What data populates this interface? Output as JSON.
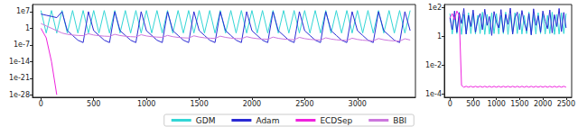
{
  "chart_data": [
    {
      "type": "line",
      "log": "y",
      "grid": false,
      "legend": "bottom",
      "xlim": [
        -80,
        3550
      ],
      "xticks": [
        0,
        500,
        1000,
        1500,
        2000,
        2500,
        3000
      ],
      "ylim": [
        1e-29,
        10000000000.0
      ],
      "yticks": [
        {
          "value": 1e-28,
          "label": "1e-28"
        },
        {
          "value": 1e-21,
          "label": "1e-21"
        },
        {
          "value": 1e-14,
          "label": "1e-14"
        },
        {
          "value": 1e-07,
          "label": "1e-7"
        },
        1,
        {
          "value": 10000000.0,
          "label": "1e7"
        }
      ],
      "x": [
        0,
        50,
        100,
        150,
        200,
        250,
        300,
        350,
        400,
        450,
        500,
        550,
        600,
        650,
        700,
        750,
        800,
        850,
        900,
        950,
        1000,
        1050,
        1100,
        1150,
        1200,
        1250,
        1300,
        1350,
        1400,
        1450,
        1500,
        1550,
        1600,
        1650,
        1700,
        1750,
        1800,
        1850,
        1900,
        1950,
        2000,
        2050,
        2100,
        2150,
        2200,
        2250,
        2300,
        2350,
        2400,
        2450,
        2500,
        2550,
        2600,
        2650,
        2700,
        2750,
        2800,
        2850,
        2900,
        2950,
        3000,
        3050,
        3100,
        3150,
        3200,
        3250,
        3300,
        3350,
        3400,
        3450,
        3500
      ],
      "series": [
        {
          "name": "GDM",
          "color": "#33d6d6",
          "values": [
            30000000.0,
            0.01,
            30000000.0,
            0.01,
            30000000.0,
            0.01,
            30000000.0,
            0.01,
            30000000.0,
            0.01,
            30000000.0,
            0.01,
            30000000.0,
            0.01,
            30000000.0,
            0.01,
            30000000.0,
            0.01,
            30000000.0,
            0.01,
            30000000.0,
            0.01,
            30000000.0,
            0.01,
            30000000.0,
            0.01,
            30000000.0,
            0.01,
            30000000.0,
            0.01,
            30000000.0,
            0.01,
            30000000.0,
            0.01,
            30000000.0,
            0.01,
            30000000.0,
            0.01,
            30000000.0,
            0.01,
            30000000.0,
            0.01,
            30000000.0,
            0.01,
            30000000.0,
            0.01,
            30000000.0,
            0.01,
            30000000.0,
            0.01,
            30000000.0,
            0.01,
            30000000.0,
            0.01,
            30000000.0,
            0.01,
            30000000.0,
            0.01,
            30000000.0,
            0.01,
            30000000.0,
            0.01,
            30000000.0,
            0.01,
            30000000.0,
            0.01,
            30000000.0,
            0.01,
            30000000.0,
            0.01,
            30000000.0
          ]
        },
        {
          "name": "Adam",
          "color": "#2a2ad4",
          "values": [
            1000000.0,
            300000.0,
            100000.0,
            30000.0,
            10000000.0,
            0.1,
            0.001,
            1e-05,
            1e-06,
            10000000.0,
            0.1,
            0.001,
            1e-05,
            1e-06,
            10000000.0,
            0.1,
            0.001,
            1e-05,
            1e-06,
            10000000.0,
            0.1,
            0.001,
            1e-05,
            1e-06,
            10000000.0,
            0.1,
            0.001,
            1e-05,
            1e-06,
            10000000.0,
            0.1,
            0.001,
            1e-05,
            1e-06,
            10000000.0,
            0.1,
            0.001,
            1e-05,
            1e-06,
            10000000.0,
            0.1,
            0.001,
            1e-05,
            1e-06,
            10000000.0,
            0.1,
            0.001,
            1e-05,
            1e-06,
            10000000.0,
            0.1,
            0.001,
            1e-05,
            1e-06,
            10000000.0,
            0.1,
            0.001,
            1e-05,
            1e-06,
            10000000.0,
            0.1,
            0.001,
            1e-05,
            1e-06,
            10000000.0,
            0.1,
            0.001,
            1e-05,
            1e-06,
            10000000.0,
            0.1
          ]
        },
        {
          "name": "ECDSep",
          "color": "#ee22dd",
          "values": [
            1,
            0.0001,
            1e-14,
            1e-28,
            null,
            null,
            null,
            null,
            null,
            null,
            null,
            null,
            null,
            null,
            null,
            null,
            null,
            null,
            null,
            null,
            null,
            null,
            null,
            null,
            null,
            null,
            null,
            null,
            null,
            null,
            null,
            null,
            null,
            null,
            null,
            null,
            null,
            null,
            null,
            null,
            null,
            null,
            null,
            null,
            null,
            null,
            null,
            null,
            null,
            null,
            null,
            null,
            null,
            null,
            null,
            null,
            null,
            null,
            null,
            null,
            null,
            null,
            null,
            null,
            null,
            null,
            null,
            null,
            null,
            null,
            null
          ]
        },
        {
          "name": "BBI",
          "color": "#cc77dd",
          "values": [
            100,
            10,
            1,
            0.1,
            0.01,
            0.003,
            0.0015,
            0.001,
            0.0008,
            0.005,
            0.0015,
            0.00075,
            0.0005,
            0.0004,
            0.003,
            0.0009,
            0.00045,
            0.0003,
            0.00024,
            0.002,
            0.0006,
            0.0003,
            0.0002,
            0.00016,
            0.001,
            0.0003,
            0.00015,
            0.0001,
            8e-05,
            0.0007,
            0.00021,
            0.0001,
            7e-05,
            5.6e-05,
            0.0005,
            0.00015,
            7.5e-05,
            5e-05,
            4e-05,
            0.0003,
            9e-05,
            4.5e-05,
            3e-05,
            2.4e-05,
            0.0002,
            6e-05,
            3e-05,
            2e-05,
            1.6e-05,
            0.00015,
            4.5e-05,
            2.2e-05,
            1.5e-05,
            1.2e-05,
            0.0001,
            3e-05,
            1.5e-05,
            1e-05,
            8e-06,
            7e-05,
            2.1e-05,
            1e-05,
            7e-06,
            5.6e-06,
            5e-05,
            1.5e-05,
            7.5e-06,
            5e-06,
            4e-06,
            4e-05,
            1.2e-05
          ]
        }
      ]
    },
    {
      "type": "line",
      "log": "y",
      "grid": false,
      "xlim": [
        -120,
        2620
      ],
      "xticks": [
        0,
        500,
        1000,
        1500,
        2000,
        2500
      ],
      "ylim": [
        6e-05,
        170
      ],
      "yticks": [
        {
          "value": 0.0001,
          "label": "1e-4"
        },
        {
          "value": 0.01,
          "label": "1e-2"
        },
        1,
        {
          "value": 100,
          "label": "1e2"
        }
      ],
      "x": [
        0,
        50,
        100,
        150,
        200,
        250,
        300,
        350,
        400,
        450,
        500,
        550,
        600,
        650,
        700,
        750,
        800,
        850,
        900,
        950,
        1000,
        1050,
        1100,
        1150,
        1200,
        1250,
        1300,
        1350,
        1400,
        1450,
        1500,
        1550,
        1600,
        1650,
        1700,
        1750,
        1800,
        1850,
        1900,
        1950,
        2000,
        2050,
        2100,
        2150,
        2200,
        2250,
        2300,
        2350,
        2400,
        2450,
        2500
      ],
      "series": [
        {
          "name": "GDM",
          "color": "#33d6d6",
          "values": [
            40,
            1.5,
            30,
            1.6,
            50,
            1.4,
            35,
            1.5,
            45,
            1.6,
            40,
            1.5,
            30,
            1.6,
            50,
            1.4,
            35,
            1.5,
            45,
            1.6,
            40,
            1.5,
            30,
            1.6,
            50,
            1.4,
            35,
            1.5,
            45,
            1.6,
            40,
            1.5,
            30,
            1.6,
            50,
            1.4,
            35,
            1.5,
            45,
            1.6,
            40,
            1.5,
            30,
            1.6,
            50,
            1.4,
            35,
            1.5,
            45,
            1.6,
            40
          ]
        },
        {
          "name": "Adam",
          "color": "#2a2ad4",
          "values": [
            20,
            3,
            60,
            2,
            45,
            8,
            90,
            1.5,
            30,
            5,
            70,
            2,
            15,
            40,
            3,
            80,
            6,
            25,
            1.2,
            55,
            10,
            4,
            75,
            2,
            35,
            7,
            95,
            1.5,
            20,
            50,
            3,
            65,
            9,
            2.5,
            40,
            1.3,
            85,
            6,
            28,
            2,
            60,
            12,
            3.5,
            70,
            1.8,
            33,
            5,
            90,
            2.2,
            48,
            4
          ]
        },
        {
          "name": "ECDSep",
          "color": "#ee22dd",
          "values": [
            20,
            40,
            15,
            60,
            30,
            0.0004,
            0.0003,
            0.00035,
            0.0003,
            0.00035,
            0.0003,
            0.00035,
            0.0003,
            0.00035,
            0.0003,
            0.00035,
            0.0003,
            0.00035,
            0.0003,
            0.00035,
            0.0003,
            0.00035,
            0.0003,
            0.00035,
            0.0003,
            0.00035,
            0.0003,
            0.00035,
            0.0003,
            0.00035,
            0.0003,
            0.00035,
            0.0003,
            0.00035,
            0.0003,
            0.00035,
            0.0003,
            0.00035,
            0.0003,
            0.00035,
            0.0003,
            0.00035,
            0.0003,
            0.00035,
            0.0003,
            0.00035,
            0.0003,
            0.00035,
            0.0003,
            0.00035,
            0.0003
          ]
        }
      ]
    }
  ]
}
